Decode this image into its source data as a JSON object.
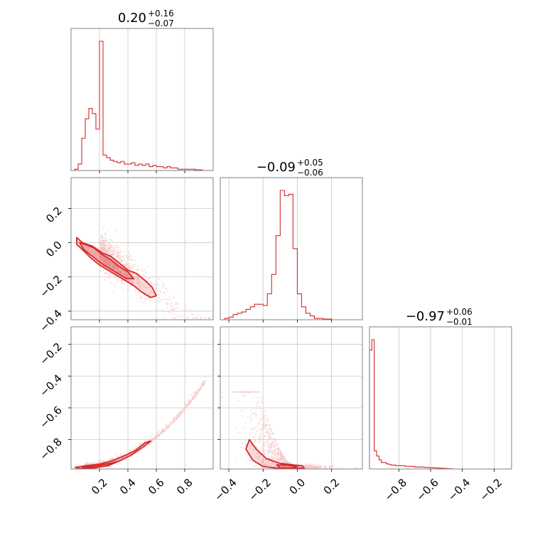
{
  "chart_data": {
    "type": "scatter",
    "colors": {
      "main": "#d62728",
      "light": "#f4c5c5",
      "frame": "#808080",
      "grid": "#c8c8c8"
    },
    "parameters": [
      {
        "id": "p0",
        "range": [
          0.0,
          1.0
        ],
        "ticks": [
          0.2,
          0.4,
          0.6,
          0.8
        ],
        "tick_labels": [
          "0.2",
          "0.4",
          "0.6",
          "0.8"
        ]
      },
      {
        "id": "p1",
        "range": [
          -0.45,
          0.38
        ],
        "ticks": [
          -0.4,
          -0.2,
          0.0,
          0.2
        ],
        "tick_labels": [
          "−0.4",
          "−0.2",
          "0.0",
          "0.2"
        ]
      },
      {
        "id": "p2",
        "range": [
          -0.985,
          -0.09
        ],
        "ticks": [
          -0.8,
          -0.6,
          -0.4,
          -0.2
        ],
        "tick_labels": [
          "−0.8",
          "−0.6",
          "−0.4",
          "−0.2"
        ]
      }
    ],
    "titles": [
      {
        "main": "0.20",
        "plus": "+0.16",
        "minus": "−0.07"
      },
      {
        "main": "−0.09",
        "plus": "+0.05",
        "minus": "−0.06"
      },
      {
        "main": "−0.97",
        "plus": "+0.06",
        "minus": "−0.01"
      }
    ],
    "histograms": [
      {
        "param": 0,
        "edges": [
          0.0,
          0.025,
          0.05,
          0.075,
          0.1,
          0.125,
          0.15,
          0.175,
          0.2,
          0.225,
          0.25,
          0.275,
          0.3,
          0.325,
          0.35,
          0.375,
          0.4,
          0.425,
          0.45,
          0.475,
          0.5,
          0.525,
          0.55,
          0.575,
          0.6,
          0.625,
          0.65,
          0.675,
          0.7,
          0.725,
          0.75,
          0.775,
          0.8,
          0.825,
          0.85,
          0.875,
          0.9,
          0.925,
          0.95,
          0.975,
          1.0
        ],
        "density": [
          0.0,
          0.01,
          0.05,
          0.25,
          0.4,
          0.48,
          0.44,
          0.32,
          1.0,
          0.12,
          0.1,
          0.08,
          0.07,
          0.06,
          0.07,
          0.05,
          0.05,
          0.06,
          0.04,
          0.05,
          0.04,
          0.05,
          0.03,
          0.04,
          0.03,
          0.03,
          0.02,
          0.03,
          0.02,
          0.02,
          0.01,
          0.01,
          0.01,
          0.01,
          0.01,
          0.005,
          0.005,
          0.0,
          0.0,
          0.0
        ]
      },
      {
        "param": 1,
        "edges": [
          -0.45,
          -0.425,
          -0.4,
          -0.375,
          -0.35,
          -0.325,
          -0.3,
          -0.275,
          -0.25,
          -0.225,
          -0.2,
          -0.175,
          -0.15,
          -0.125,
          -0.1,
          -0.075,
          -0.05,
          -0.025,
          0.0,
          0.025,
          0.05,
          0.075,
          0.1,
          0.125,
          0.15,
          0.175,
          0.2,
          0.225,
          0.25,
          0.275,
          0.3,
          0.325,
          0.35,
          0.375
        ],
        "density": [
          0.0,
          0.01,
          0.02,
          0.04,
          0.05,
          0.06,
          0.08,
          0.1,
          0.12,
          0.12,
          0.11,
          0.2,
          0.35,
          0.65,
          1.0,
          0.96,
          0.97,
          0.55,
          0.2,
          0.1,
          0.05,
          0.03,
          0.01,
          0.01,
          0.005,
          0.005,
          0.0,
          0.0,
          0.0,
          0.0,
          0.0,
          0.0,
          0.0
        ]
      },
      {
        "param": 2,
        "edges": [
          -0.985,
          -0.97,
          -0.955,
          -0.94,
          -0.925,
          -0.91,
          -0.895,
          -0.88,
          -0.865,
          -0.85,
          -0.82,
          -0.79,
          -0.76,
          -0.73,
          -0.7,
          -0.67,
          -0.64,
          -0.61,
          -0.58,
          -0.55,
          -0.52,
          -0.49,
          -0.46
        ],
        "density": [
          0.92,
          1.0,
          0.14,
          0.1,
          0.07,
          0.05,
          0.05,
          0.04,
          0.035,
          0.03,
          0.025,
          0.025,
          0.02,
          0.02,
          0.015,
          0.015,
          0.012,
          0.01,
          0.008,
          0.006,
          0.004,
          0.002
        ]
      }
    ],
    "contours": [
      {
        "x_param": 0,
        "y_param": 1,
        "levels": [
          [
            [
              0.04,
              0.03
            ],
            [
              0.08,
              0.0
            ],
            [
              0.15,
              -0.02
            ],
            [
              0.22,
              -0.06
            ],
            [
              0.28,
              -0.08
            ],
            [
              0.34,
              -0.12
            ],
            [
              0.4,
              -0.16
            ],
            [
              0.46,
              -0.18
            ],
            [
              0.52,
              -0.22
            ],
            [
              0.57,
              -0.26
            ],
            [
              0.6,
              -0.31
            ],
            [
              0.56,
              -0.32
            ],
            [
              0.5,
              -0.29
            ],
            [
              0.44,
              -0.25
            ],
            [
              0.38,
              -0.22
            ],
            [
              0.32,
              -0.19
            ],
            [
              0.26,
              -0.16
            ],
            [
              0.2,
              -0.13
            ],
            [
              0.14,
              -0.09
            ],
            [
              0.08,
              -0.04
            ],
            [
              0.04,
              -0.01
            ]
          ],
          [
            [
              0.06,
              0.0
            ],
            [
              0.1,
              -0.01
            ],
            [
              0.16,
              -0.03
            ],
            [
              0.22,
              -0.07
            ],
            [
              0.28,
              -0.1
            ],
            [
              0.34,
              -0.14
            ],
            [
              0.4,
              -0.17
            ],
            [
              0.44,
              -0.21
            ],
            [
              0.39,
              -0.21
            ],
            [
              0.33,
              -0.18
            ],
            [
              0.27,
              -0.15
            ],
            [
              0.21,
              -0.12
            ],
            [
              0.15,
              -0.08
            ],
            [
              0.09,
              -0.04
            ]
          ]
        ]
      },
      {
        "x_param": 0,
        "y_param": 2,
        "levels": [
          [
            [
              0.03,
              -0.975
            ],
            [
              0.1,
              -0.965
            ],
            [
              0.2,
              -0.955
            ],
            [
              0.3,
              -0.93
            ],
            [
              0.38,
              -0.9
            ],
            [
              0.45,
              -0.87
            ],
            [
              0.52,
              -0.82
            ],
            [
              0.56,
              -0.81
            ],
            [
              0.5,
              -0.85
            ],
            [
              0.42,
              -0.9
            ],
            [
              0.34,
              -0.935
            ],
            [
              0.26,
              -0.965
            ],
            [
              0.15,
              -0.98
            ],
            [
              0.05,
              -0.982
            ]
          ],
          [
            [
              0.08,
              -0.975
            ],
            [
              0.18,
              -0.965
            ],
            [
              0.27,
              -0.95
            ],
            [
              0.32,
              -0.94
            ],
            [
              0.25,
              -0.965
            ],
            [
              0.15,
              -0.978
            ]
          ]
        ]
      },
      {
        "x_param": 1,
        "y_param": 2,
        "levels": [
          [
            [
              -0.28,
              -0.8
            ],
            [
              -0.24,
              -0.86
            ],
            [
              -0.18,
              -0.92
            ],
            [
              -0.1,
              -0.95
            ],
            [
              -0.02,
              -0.96
            ],
            [
              0.03,
              -0.965
            ],
            [
              0.04,
              -0.98
            ],
            [
              -0.04,
              -0.982
            ],
            [
              -0.12,
              -0.98
            ],
            [
              -0.2,
              -0.97
            ],
            [
              -0.26,
              -0.93
            ],
            [
              -0.3,
              -0.86
            ]
          ],
          [
            [
              -0.12,
              -0.96
            ],
            [
              -0.06,
              -0.96
            ],
            [
              0.0,
              -0.97
            ],
            [
              -0.04,
              -0.98
            ],
            [
              -0.1,
              -0.978
            ]
          ]
        ]
      }
    ]
  }
}
